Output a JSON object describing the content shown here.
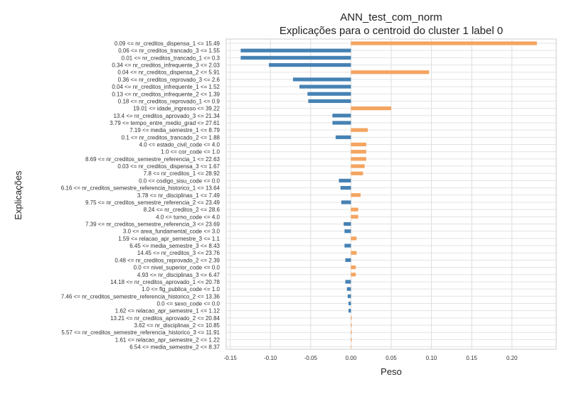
{
  "chart_data": {
    "type": "bar",
    "orientation": "horizontal",
    "title": "ANN_test_com_norm",
    "subtitle": "Explicações para o centroid do cluster 1 label 0",
    "xlabel": "Peso",
    "ylabel": "Explicações",
    "xlim": [
      -0.155,
      0.255
    ],
    "xticks": [
      -0.15,
      -0.1,
      -0.05,
      0.0,
      0.05,
      0.1,
      0.15,
      0.2
    ],
    "xtick_labels": [
      "-0.15",
      "-0.10",
      "-0.05",
      "0.00",
      "0.05",
      "0.10",
      "0.15",
      "0.20"
    ],
    "grid": true,
    "positive_color": "#f4a460",
    "negative_color": "#4682b4",
    "categories": [
      "0.09 <= nr_creditos_dispensa_1 <= 15.49",
      "0.06 <= nr_creditos_trancado_3 <= 1.55",
      "0.01 <= nr_creditos_trancado_1 <= 0.3",
      "0.34 <= nr_creditos_infrequente_3 <= 2.03",
      "0.04 <= nr_creditos_dispensa_2 <= 5.91",
      "0.36 <= nr_creditos_reprovado_3 <= 2.6",
      "0.04 <= nr_creditos_infrequente_1 <= 1.52",
      "0.13 <= nr_creditos_infrequente_2 <= 1.39",
      "0.18 <= nr_creditos_reprovado_1 <= 0.9",
      "19.01 <= idade_ingresso <= 39.22",
      "13.4 <= nr_creditos_aprovado_3 <= 21.34",
      "3.79 <= tempo_entre_medio_grad <= 27.61",
      "7.19 <= media_semestre_1 <= 8.79",
      "0.1 <= nr_creditos_trancado_2 <= 1.88",
      "4.0 <= estado_civil_code <= 4.0",
      "1.0 <= cor_code <= 1.0",
      "8.69 <= nr_creditos_semestre_referencia_1 <= 22.63",
      "0.03 <= nr_creditos_dispensa_3 <= 1.67",
      "7.8 <= nr_creditos_1 <= 28.92",
      "0.0 <= codigo_sisu_code <= 0.0",
      "6.16 <= nr_creditos_semestre_referencia_historico_1 <= 13.64",
      "3.78 <= nr_disciplinas_1 <= 7.49",
      "9.75 <= nr_creditos_semestre_referencia_2 <= 23.49",
      "8.24 <= nr_creditos_2 <= 28.6",
      "4.0 <= turno_code <= 4.0",
      "7.39 <= nr_creditos_semestre_referencia_3 <= 23.69",
      "3.0 <= area_fundamental_code <= 3.0",
      "1.59 <= relacao_apr_semestre_3 <= 1.1",
      "6.45 <= media_semestre_3 <= 8.43",
      "14.45 <= nr_creditos_3 <= 23.76",
      "0.48 <= nr_creditos_reprovado_2 <= 2.39",
      "0.0 <= nivel_superior_code <= 0.0",
      "4.93 <= nr_disciplinas_3 <= 6.47",
      "14.18 <= nr_creditos_aprovado_1 <= 20.78",
      "1.0 <= flg_publica_code <= 1.0",
      "7.46 <= nr_creditos_semestre_referencia_historico_2 <= 13.36",
      "0.0 <= sexo_code <= 0.0",
      "1.62 <= relacao_apr_semestre_1 <= 1.12",
      "13.21 <= nr_creditos_aprovado_2 <= 20.84",
      "3.62 <= nr_disciplinas_2 <= 10.85",
      "5.57 <= nr_creditos_semestre_referencia_historico_3 <= 11.91",
      "1.61 <= relacao_apr_semestre_2 <= 1.22",
      "6.54 <= media_semestre_2 <= 8.37"
    ],
    "values": [
      0.231,
      -0.137,
      -0.137,
      -0.102,
      0.097,
      -0.072,
      -0.064,
      -0.054,
      -0.053,
      0.05,
      -0.023,
      -0.023,
      0.021,
      -0.019,
      0.019,
      0.019,
      0.019,
      0.017,
      0.015,
      -0.015,
      -0.013,
      0.012,
      -0.012,
      0.009,
      0.009,
      -0.009,
      -0.008,
      0.007,
      -0.008,
      0.007,
      -0.007,
      0.006,
      0.006,
      -0.007,
      -0.005,
      -0.004,
      -0.003,
      -0.003,
      0.001,
      0.001,
      0.001,
      0.001,
      0.0005
    ]
  }
}
